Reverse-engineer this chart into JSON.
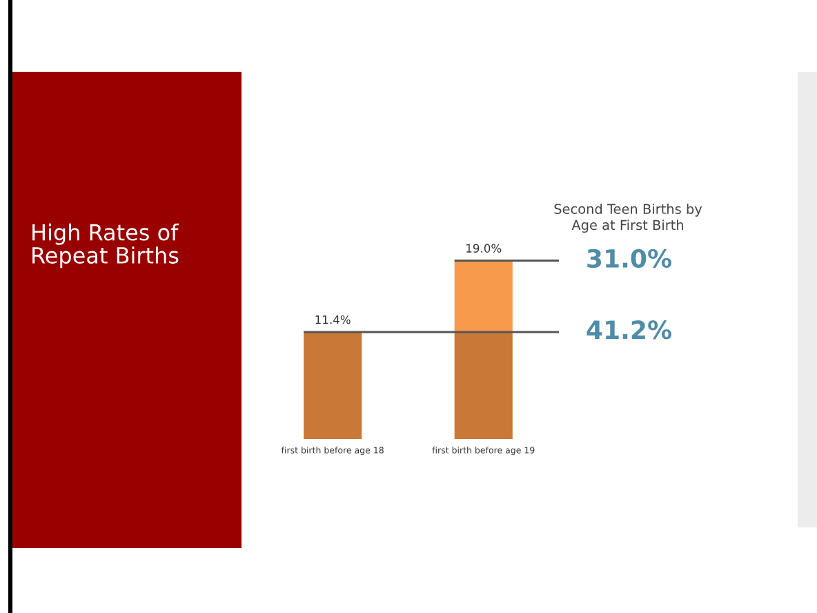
{
  "chart_data": {
    "type": "bar",
    "title": "High Rates of\nRepeat Births",
    "subtitle": "Second Teen Births by\nAge at First Birth",
    "categories": [
      "first birth before age 18",
      "first birth before age 19"
    ],
    "stacked": true,
    "series": [
      {
        "color": "#c97838",
        "values": [
          11.4,
          11.4
        ],
        "value_labels": [
          "11.4%",
          null
        ]
      },
      {
        "color": "#f79a4c",
        "values": [
          null,
          7.6
        ]
      }
    ],
    "totals": [
      null,
      "19.0%"
    ],
    "ref_lines": [
      {
        "axis": "y",
        "value": 19.0,
        "color": "#555555",
        "line_style": "solid"
      },
      {
        "axis": "y",
        "value": 11.4,
        "color": "#555555",
        "line_style": "solid"
      }
    ],
    "annotations": [
      "31.0%",
      "41.2%"
    ],
    "tick_labels": "x"
  }
}
